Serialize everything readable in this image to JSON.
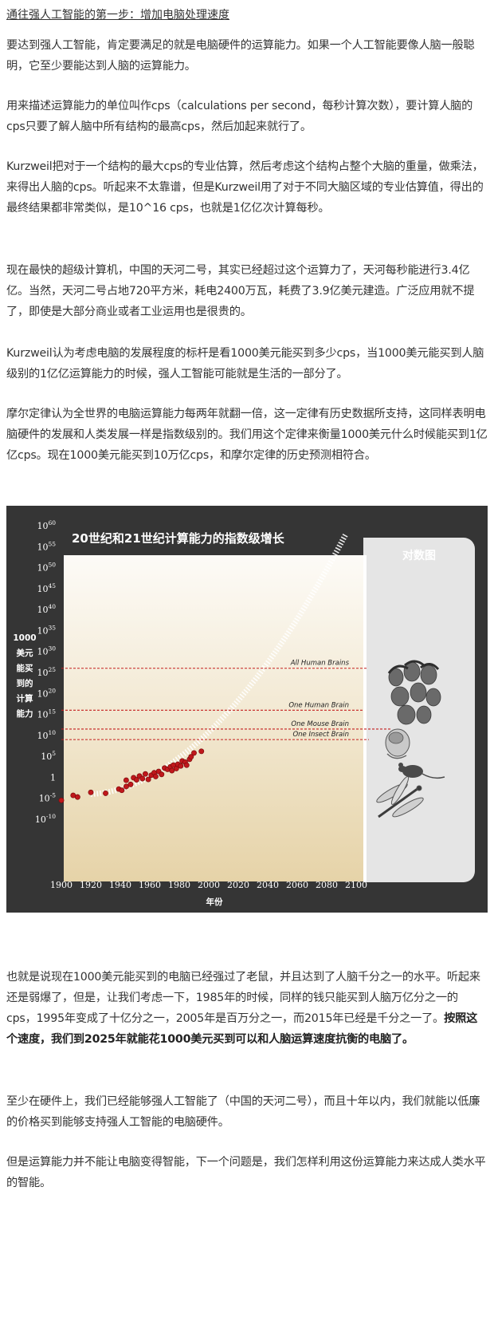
{
  "article": {
    "heading": "通往强人工智能的第一步：增加电脑处理速度",
    "p1": "要达到强人工智能，肯定要满足的就是电脑硬件的运算能力。如果一个人工智能要像人脑一般聪明，它至少要能达到人脑的运算能力。",
    "p2": "用来描述运算能力的单位叫作cps（calculations per second，每秒计算次数），要计算人脑的cps只要了解人脑中所有结构的最高cps，然后加起来就行了。",
    "p3": "Kurzweil把对于一个结构的最大cps的专业估算，然后考虑这个结构占整个大脑的重量，做乘法，来得出人脑的cps。听起来不太靠谱，但是Kurzweil用了对于不同大脑区域的专业估算值，得出的最终结果都非常类似，是10^16 cps，也就是1亿亿次计算每秒。",
    "p4": "现在最快的超级计算机，中国的天河二号，其实已经超过这个运算力了，天河每秒能进行3.4亿亿。当然，天河二号占地720平方米，耗电2400万瓦，耗费了3.9亿美元建造。广泛应用就不提了，即使是大部分商业或者工业运用也是很贵的。",
    "p5": "Kurzweil认为考虑电脑的发展程度的标杆是看1000美元能买到多少cps，当1000美元能买到人脑级别的1亿亿运算能力的时候，强人工智能可能就是生活的一部分了。",
    "p6": "摩尔定律认为全世界的电脑运算能力每两年就翻一倍，这一定律有历史数据所支持，这同样表明电脑硬件的发展和人类发展一样是指数级别的。我们用这个定律来衡量1000美元什么时候能买到1亿亿cps。现在1000美元能买到10万亿cps，和摩尔定律的历史预测相符合。",
    "p7_normal": "也就是说现在1000美元能买到的电脑已经强过了老鼠，并且达到了人脑千分之一的水平。听起来还是弱爆了，但是，让我们考虑一下，1985年的时候，同样的钱只能买到人脑万亿分之一的cps，1995年变成了十亿分之一，2005年是百万分之一，而2015年已经是千分之一了。",
    "p7_bold": "按照这个速度，我们到2025年就能花1000美元买到可以和人脑运算速度抗衡的电脑了。",
    "p8": "至少在硬件上，我们已经能够强人工智能了（中国的天河二号），而且十年以内，我们就能以低廉的价格买到能够支持强人工智能的电脑硬件。",
    "p9": "但是运算能力并不能让电脑变得智能，下一个问题是，我们怎样利用这份运算能力来达成人类水平的智能。"
  },
  "chart_data": {
    "type": "scatter",
    "title": "20世纪和21世纪计算能力的指数级增长",
    "xlabel": "年份",
    "ylabel": "1000美元能买到的计算能力",
    "side_label": "对数图",
    "x_ticks": [
      "1900",
      "1920",
      "1940",
      "1960",
      "1980",
      "2000",
      "2020",
      "2040",
      "2060",
      "2080",
      "2100"
    ],
    "y_ticks": [
      {
        "base": "10",
        "exp": "60"
      },
      {
        "base": "10",
        "exp": "55"
      },
      {
        "base": "10",
        "exp": "50"
      },
      {
        "base": "10",
        "exp": "45"
      },
      {
        "base": "10",
        "exp": "40"
      },
      {
        "base": "10",
        "exp": "35"
      },
      {
        "base": "10",
        "exp": "30"
      },
      {
        "base": "10",
        "exp": "25"
      },
      {
        "base": "10",
        "exp": "20"
      },
      {
        "base": "10",
        "exp": "15"
      },
      {
        "base": "10",
        "exp": "10"
      },
      {
        "base": "10",
        "exp": "5"
      },
      {
        "base": "1",
        "exp": ""
      },
      {
        "base": "10",
        "exp": "-5"
      },
      {
        "base": "10",
        "exp": "-10"
      }
    ],
    "xlim": [
      1900,
      2100
    ],
    "ylim": [
      -10,
      60
    ],
    "y_scale": "log",
    "reference_lines": [
      {
        "label": "All Human Brains",
        "log_value": 26
      },
      {
        "label": "One Human Brain",
        "log_value": 16
      },
      {
        "label": "One Mouse Brain",
        "log_value": 11.5
      },
      {
        "label": "One Insect Brain",
        "log_value": 9
      }
    ],
    "points": [
      {
        "year": 1900,
        "log_value": -5.5
      },
      {
        "year": 1908,
        "log_value": -4.3
      },
      {
        "year": 1911,
        "log_value": -4.7
      },
      {
        "year": 1920,
        "log_value": -3.6
      },
      {
        "year": 1930,
        "log_value": -3.8
      },
      {
        "year": 1939,
        "log_value": -2.8
      },
      {
        "year": 1941,
        "log_value": -3.1
      },
      {
        "year": 1944,
        "log_value": -2.2
      },
      {
        "year": 1944,
        "log_value": -0.7
      },
      {
        "year": 1947,
        "log_value": -1.7
      },
      {
        "year": 1949,
        "log_value": -0.1
      },
      {
        "year": 1951,
        "log_value": -0.6
      },
      {
        "year": 1953,
        "log_value": 0.3
      },
      {
        "year": 1955,
        "log_value": -0.3
      },
      {
        "year": 1957,
        "log_value": 0.8
      },
      {
        "year": 1959,
        "log_value": -0.5
      },
      {
        "year": 1961,
        "log_value": 0.5
      },
      {
        "year": 1963,
        "log_value": 1.1
      },
      {
        "year": 1964,
        "log_value": 0.2
      },
      {
        "year": 1966,
        "log_value": 1.4
      },
      {
        "year": 1968,
        "log_value": 0.7
      },
      {
        "year": 1970,
        "log_value": 2.2
      },
      {
        "year": 1972,
        "log_value": 1.9
      },
      {
        "year": 1974,
        "log_value": 2.5
      },
      {
        "year": 1975,
        "log_value": 1.6
      },
      {
        "year": 1976,
        "log_value": 2.9
      },
      {
        "year": 1978,
        "log_value": 2.1
      },
      {
        "year": 1979,
        "log_value": 3.1
      },
      {
        "year": 1981,
        "log_value": 2.7
      },
      {
        "year": 1982,
        "log_value": 3.9
      },
      {
        "year": 1984,
        "log_value": 3.6
      },
      {
        "year": 1985,
        "log_value": 2.9
      },
      {
        "year": 1987,
        "log_value": 4.3
      },
      {
        "year": 1988,
        "log_value": 4.9
      },
      {
        "year": 1990,
        "log_value": 5.8
      },
      {
        "year": 1995,
        "log_value": 6.2
      }
    ],
    "grid": false,
    "legend": "none",
    "colors": {
      "background": "#353535",
      "panel": "#e5e5e5",
      "point": "#c0181c",
      "ref_line": "#c41e1e"
    }
  }
}
